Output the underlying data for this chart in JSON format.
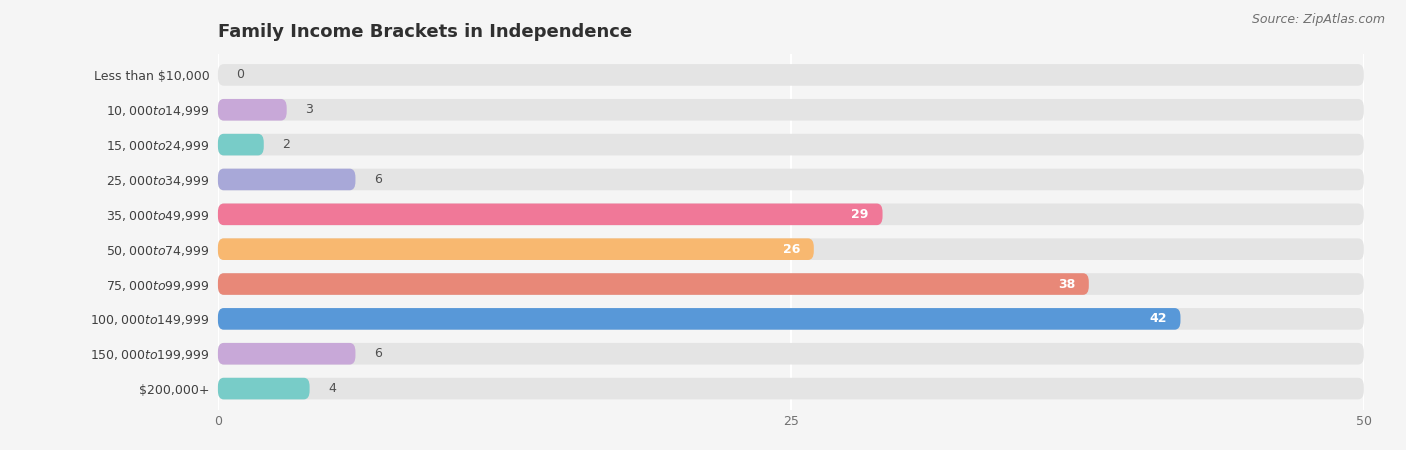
{
  "title": "Family Income Brackets in Independence",
  "source_text": "Source: ZipAtlas.com",
  "categories": [
    "Less than $10,000",
    "$10,000 to $14,999",
    "$15,000 to $24,999",
    "$25,000 to $34,999",
    "$35,000 to $49,999",
    "$50,000 to $74,999",
    "$75,000 to $99,999",
    "$100,000 to $149,999",
    "$150,000 to $199,999",
    "$200,000+"
  ],
  "values": [
    0,
    3,
    2,
    6,
    29,
    26,
    38,
    42,
    6,
    4
  ],
  "bar_colors": [
    "#a8c8e8",
    "#c8a8d8",
    "#78ccc8",
    "#a8a8d8",
    "#f07898",
    "#f8b870",
    "#e88878",
    "#5898d8",
    "#c8a8d8",
    "#78ccc8"
  ],
  "xlim": [
    0,
    50
  ],
  "xticks": [
    0,
    25,
    50
  ],
  "background_color": "#f5f5f5",
  "bar_background_color": "#e4e4e4",
  "label_color_dark": "#505050",
  "label_color_light": "#ffffff",
  "title_fontsize": 13,
  "cat_fontsize": 9,
  "val_fontsize": 9,
  "tick_fontsize": 9,
  "source_fontsize": 9
}
